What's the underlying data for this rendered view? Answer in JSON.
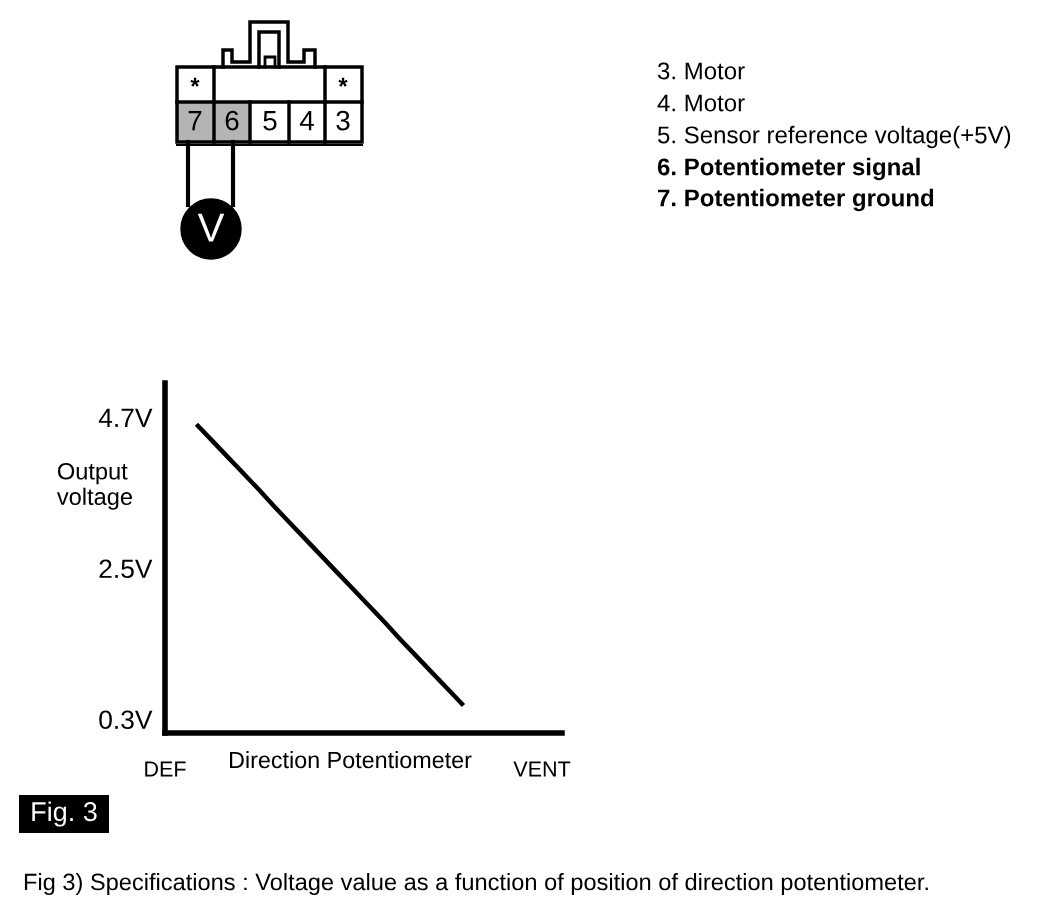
{
  "chart_data": {
    "type": "line",
    "xlabel": "Direction Potentiometer",
    "ylabel": "Output\nvoltage",
    "categories": [
      "DEF",
      null,
      null,
      null,
      null,
      null,
      null,
      null,
      null,
      null,
      null,
      null,
      null,
      null,
      null,
      null,
      null,
      null,
      null,
      null,
      null,
      null,
      null,
      null,
      "VENT"
    ],
    "series": [
      {
        "color": "#000000",
        "values": [
          null,
          null,
          4.6,
          4.36,
          4.12,
          3.88,
          3.64,
          3.39,
          3.15,
          2.91,
          2.67,
          2.43,
          2.19,
          1.95,
          1.71,
          1.46,
          1.22,
          0.98,
          0.74,
          0.5,
          null,
          null,
          null,
          null,
          null
        ]
      }
    ],
    "ylim": [
      0.1,
      5.2
    ],
    "yticks": [
      {
        "value": 0.3,
        "label": "0.3V"
      },
      {
        "value": 2.5,
        "label": "2.5V"
      },
      {
        "value": 4.7,
        "label": "4.7V"
      }
    ],
    "line_style": "solid",
    "grid": false,
    "annotations": [
      "3. Motor",
      "4. Motor",
      "5. Sensor reference voltage(+5V)",
      "6. Potentiometer signal",
      "7. Potentiometer ground",
      "Fig. 3",
      "Fig 3) Specifications : Voltage value as a function of position of direction potentiometer.",
      "*",
      "*",
      "7",
      "6",
      "5",
      "4",
      "3",
      "V"
    ]
  }
}
